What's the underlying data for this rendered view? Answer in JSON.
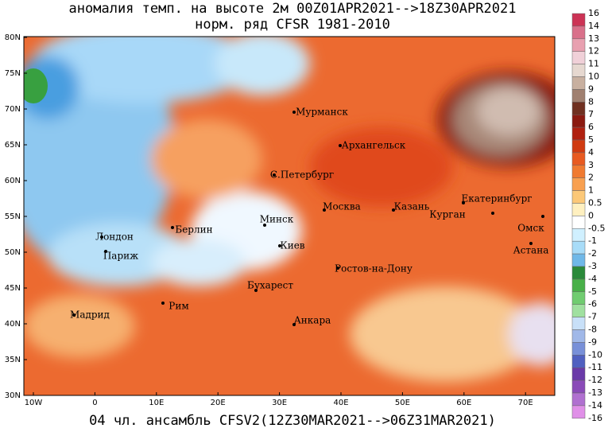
{
  "header": {
    "title": "аномалия темп. на высоте 2м 00Z01APR2021-->18Z30APR2021",
    "subtitle": "норм. ряд CFSR 1981-2010"
  },
  "map": {
    "lat_labels": [
      "80N",
      "75N",
      "70N",
      "65N",
      "60N",
      "55N",
      "50N",
      "45N",
      "40N",
      "35N",
      "30N"
    ],
    "lon_labels": [
      "10W",
      "0",
      "10E",
      "20E",
      "30E",
      "40E",
      "50E",
      "60E",
      "70E"
    ],
    "cities": [
      "Мурманск",
      "Архангельск",
      "С.Петербург",
      "Москва",
      "Казань",
      "Екатеринбург",
      "Курган",
      "Омск",
      "Астана",
      "Минск",
      "Берлин",
      "Лондон",
      "Париж",
      "Киев",
      "Ростов-на-Дону",
      "Бухарест",
      "Рим",
      "Мадрид",
      "Анкара"
    ]
  },
  "colorbar": {
    "labels": [
      "16",
      "14",
      "13",
      "12",
      "11",
      "10",
      "9",
      "8",
      "7",
      "6",
      "5",
      "4",
      "3",
      "2",
      "1",
      "0.5",
      "0",
      "-0.5",
      "-1",
      "-2",
      "-3",
      "-4",
      "-5",
      "-6",
      "-7",
      "-8",
      "-9",
      "-10",
      "-11",
      "-12",
      "-13",
      "-14",
      "-16"
    ]
  },
  "footer": "04 чл. ансамбль CFSV2(12Z30MAR2021-->06Z31MAR2021)"
}
